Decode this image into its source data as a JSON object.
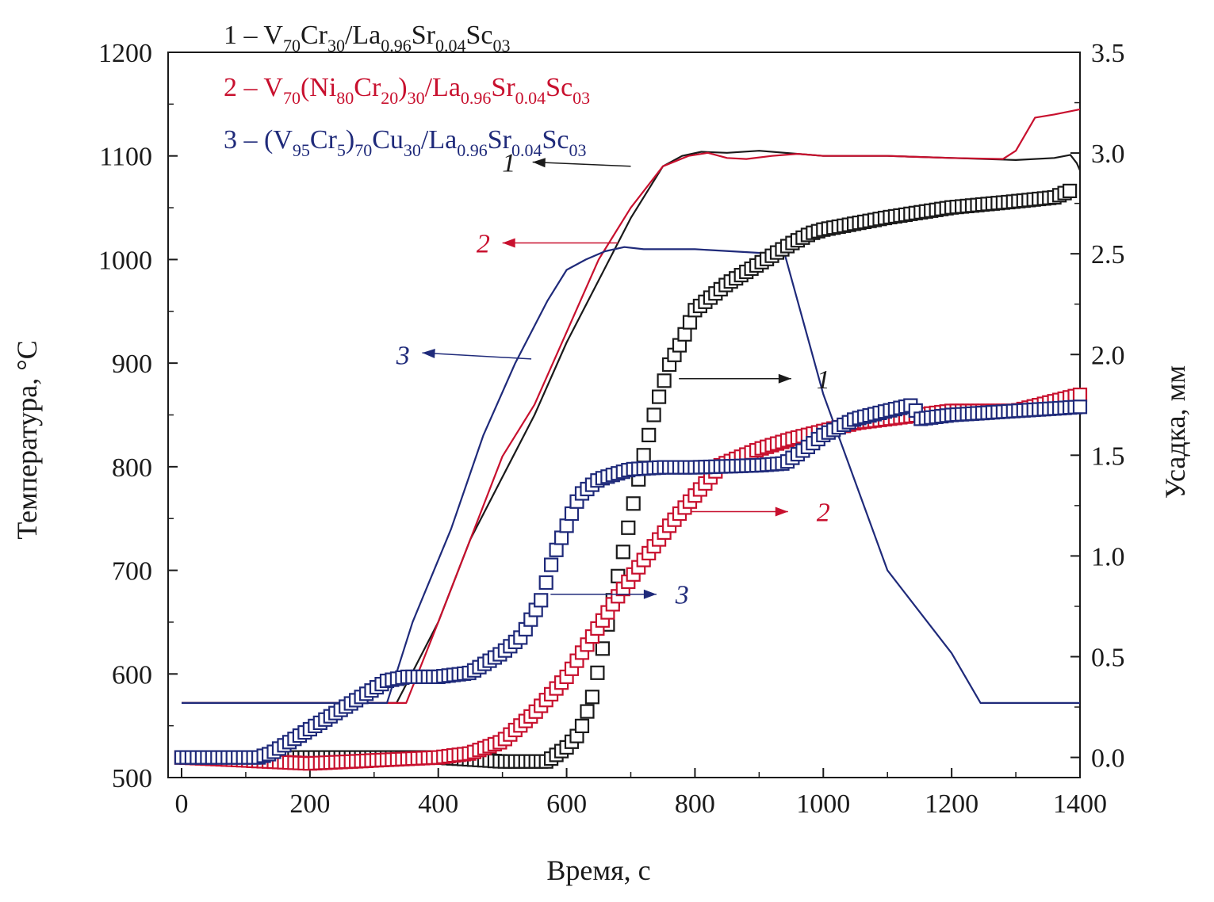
{
  "chart_data": {
    "type": "line",
    "xlabel": "Время, с",
    "ylabel_left": "Температура, °C",
    "ylabel_right": "Усадка, мм",
    "xlim": [
      0,
      1400
    ],
    "ylim_left": [
      500,
      1200
    ],
    "ylim_right": [
      -0.1,
      3.5
    ],
    "xticks": [
      "0",
      "200",
      "400",
      "600",
      "800",
      "1000",
      "1200",
      "1400"
    ],
    "yticks_left": [
      "500",
      "600",
      "700",
      "800",
      "900",
      "1000",
      "1100",
      "1200"
    ],
    "yticks_right": [
      "0.0",
      "0.5",
      "1.0",
      "1.5",
      "2.0",
      "2.5",
      "3.0",
      "3.5"
    ],
    "legend": [
      {
        "id": "1",
        "color": "#1a1a1a",
        "parts": [
          [
            "1 – V",
            ""
          ],
          [
            "70",
            "sub"
          ],
          [
            "Cr",
            ""
          ],
          [
            "30",
            "sub"
          ],
          [
            "/La",
            ""
          ],
          [
            "0.96",
            "sub"
          ],
          [
            "Sr",
            ""
          ],
          [
            "0.04",
            "sub"
          ],
          [
            "Sc",
            ""
          ],
          [
            "03",
            "sub"
          ]
        ]
      },
      {
        "id": "2",
        "color": "#c8102e",
        "parts": [
          [
            "2 – V",
            ""
          ],
          [
            "70",
            "sub"
          ],
          [
            "(Ni",
            ""
          ],
          [
            "80",
            "sub"
          ],
          [
            "Cr",
            ""
          ],
          [
            "20",
            "sub"
          ],
          [
            ")",
            ""
          ],
          [
            "30",
            "sub"
          ],
          [
            "/La",
            ""
          ],
          [
            "0.96",
            "sub"
          ],
          [
            "Sr",
            ""
          ],
          [
            "0.04",
            "sub"
          ],
          [
            "Sc",
            ""
          ],
          [
            "03",
            "sub"
          ]
        ]
      },
      {
        "id": "3",
        "color": "#1f2a7a",
        "parts": [
          [
            "3 – (V",
            ""
          ],
          [
            "95",
            "sub"
          ],
          [
            "Cr",
            ""
          ],
          [
            "5",
            "sub"
          ],
          [
            ")",
            ""
          ],
          [
            "70",
            "sub"
          ],
          [
            "Cu",
            ""
          ],
          [
            "30",
            "sub"
          ],
          [
            "/La",
            ""
          ],
          [
            "0.96",
            "sub"
          ],
          [
            "Sr",
            ""
          ],
          [
            "0.04",
            "sub"
          ],
          [
            "Sc",
            ""
          ],
          [
            "03",
            "sub"
          ]
        ]
      }
    ],
    "series": [
      {
        "name": "1",
        "kind": "temperature",
        "axis": "left",
        "color": "#1a1a1a",
        "x": [
          0,
          200,
          335,
          350,
          400,
          450,
          500,
          550,
          600,
          650,
          700,
          750,
          780,
          810,
          850,
          900,
          1000,
          1100,
          1200,
          1300,
          1360,
          1385,
          1395,
          1400
        ],
        "y": [
          572,
          572,
          572,
          590,
          650,
          730,
          790,
          850,
          920,
          980,
          1040,
          1090,
          1100,
          1104,
          1103,
          1105,
          1100,
          1100,
          1098,
          1096,
          1098,
          1101,
          1093,
          1086
        ]
      },
      {
        "name": "2",
        "kind": "temperature",
        "axis": "left",
        "color": "#c8102e",
        "x": [
          0,
          200,
          350,
          400,
          450,
          500,
          550,
          600,
          650,
          700,
          750,
          790,
          820,
          850,
          880,
          920,
          960,
          1000,
          1100,
          1200,
          1280,
          1300,
          1330,
          1360,
          1400
        ],
        "y": [
          572,
          572,
          572,
          650,
          730,
          810,
          860,
          930,
          1000,
          1050,
          1090,
          1100,
          1103,
          1098,
          1097,
          1100,
          1102,
          1100,
          1100,
          1098,
          1097,
          1105,
          1137,
          1140,
          1145
        ]
      },
      {
        "name": "3",
        "kind": "temperature",
        "axis": "left",
        "color": "#1f2a7a",
        "x": [
          0,
          320,
          360,
          420,
          470,
          520,
          570,
          600,
          630,
          660,
          690,
          720,
          800,
          940,
          1000,
          1100,
          1200,
          1245,
          1300,
          1400
        ],
        "y": [
          572,
          572,
          650,
          740,
          830,
          900,
          960,
          990,
          1000,
          1008,
          1012,
          1010,
          1010,
          1005,
          870,
          700,
          620,
          572,
          572,
          572
        ]
      },
      {
        "name": "1",
        "kind": "shrinkage",
        "axis": "right",
        "color": "#1a1a1a",
        "x": [
          0,
          300,
          400,
          500,
          570,
          600,
          620,
          640,
          660,
          680,
          700,
          720,
          740,
          760,
          780,
          800,
          850,
          900,
          950,
          980,
          1000,
          1100,
          1200,
          1300,
          1360,
          1390
        ],
        "y": [
          0.0,
          0.0,
          0.0,
          -0.02,
          -0.02,
          0.05,
          0.12,
          0.3,
          0.6,
          0.9,
          1.2,
          1.5,
          1.75,
          1.95,
          2.07,
          2.22,
          2.35,
          2.45,
          2.55,
          2.6,
          2.62,
          2.68,
          2.73,
          2.76,
          2.78,
          2.82
        ]
      },
      {
        "name": "2",
        "kind": "shrinkage",
        "axis": "right",
        "color": "#c8102e",
        "x": [
          0,
          200,
          400,
          450,
          500,
          550,
          600,
          640,
          680,
          720,
          760,
          800,
          840,
          900,
          950,
          1000,
          1050,
          1100,
          1150,
          1200,
          1300,
          1400
        ],
        "y": [
          0.0,
          -0.03,
          0.0,
          0.02,
          0.08,
          0.22,
          0.4,
          0.6,
          0.8,
          0.98,
          1.15,
          1.3,
          1.45,
          1.53,
          1.58,
          1.62,
          1.66,
          1.68,
          1.7,
          1.72,
          1.72,
          1.8
        ]
      },
      {
        "name": "3",
        "kind": "shrinkage",
        "axis": "right",
        "color": "#1f2a7a",
        "x": [
          0,
          120,
          140,
          200,
          260,
          300,
          320,
          350,
          400,
          450,
          500,
          530,
          560,
          580,
          600,
          620,
          650,
          700,
          750,
          800,
          900,
          940,
          980,
          1000,
          1050,
          1100,
          1140,
          1150,
          1200,
          1300,
          1400
        ],
        "y": [
          0.0,
          0.0,
          0.02,
          0.14,
          0.26,
          0.34,
          0.38,
          0.4,
          0.4,
          0.42,
          0.52,
          0.6,
          0.78,
          1.0,
          1.15,
          1.3,
          1.38,
          1.43,
          1.44,
          1.44,
          1.45,
          1.46,
          1.55,
          1.6,
          1.68,
          1.72,
          1.75,
          1.68,
          1.7,
          1.72,
          1.74
        ]
      }
    ],
    "annotations": [
      {
        "label": "1",
        "color": "#1a1a1a",
        "at": [
          510,
          1094
        ],
        "from": [
          700,
          1090
        ],
        "to": [
          547,
          1094
        ],
        "side": "left"
      },
      {
        "label": "2",
        "color": "#c8102e",
        "at": [
          470,
          1016
        ],
        "from": [
          680,
          1016
        ],
        "to": [
          500,
          1016
        ],
        "side": "left"
      },
      {
        "label": "3",
        "color": "#1f2a7a",
        "at": [
          345,
          908
        ],
        "from": [
          545,
          904
        ],
        "to": [
          375,
          910
        ],
        "side": "left"
      },
      {
        "label": "1",
        "color": "#1a1a1a",
        "at": [
          1000,
          1.88
        ],
        "from": [
          775,
          1.88
        ],
        "to": [
          950,
          1.88
        ],
        "side": "right"
      },
      {
        "label": "2",
        "color": "#c8102e",
        "at": [
          1000,
          1.22
        ],
        "from": [
          795,
          1.22
        ],
        "to": [
          945,
          1.22
        ],
        "side": "right"
      },
      {
        "label": "3",
        "color": "#1f2a7a",
        "at": [
          780,
          0.81
        ],
        "from": [
          575,
          0.81
        ],
        "to": [
          740,
          0.81
        ],
        "side": "right"
      }
    ]
  }
}
